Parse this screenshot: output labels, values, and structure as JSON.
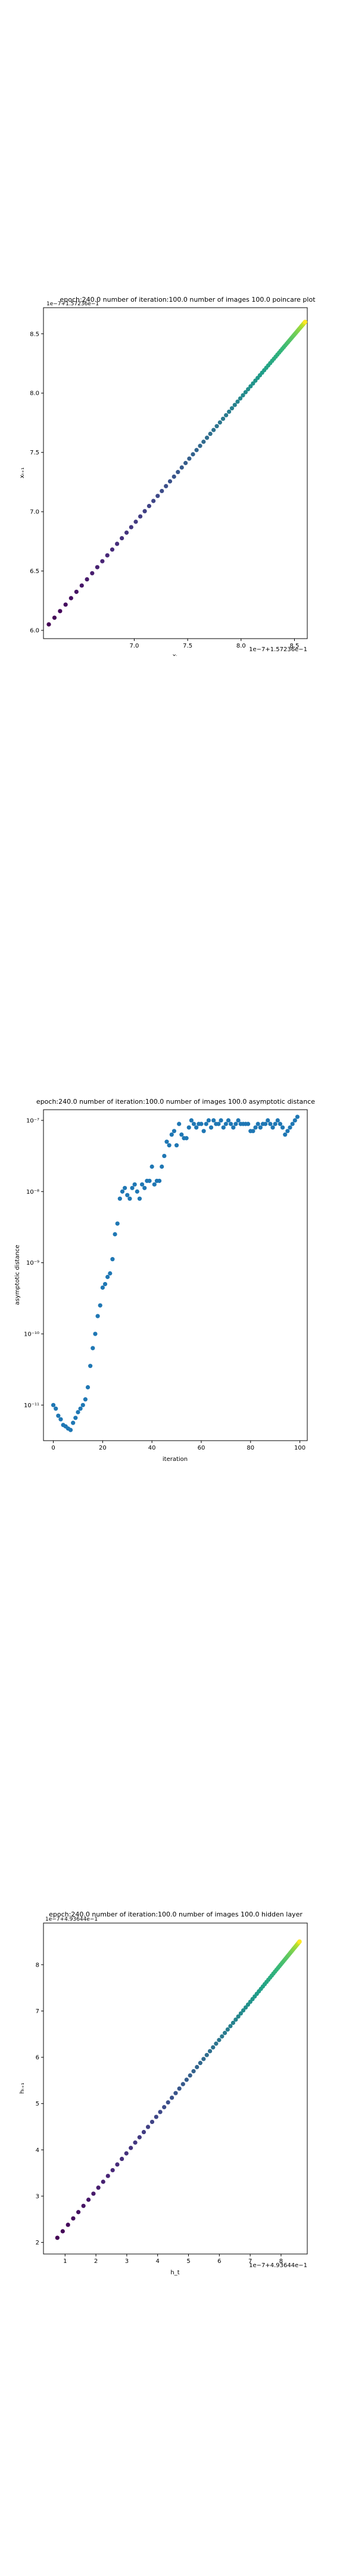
{
  "chart_data": [
    {
      "type": "scatter",
      "title": "epoch:240.0 number of iteration:100.0 number of images 100.0 poincare plot",
      "xlabel": "xₜ",
      "ylabel": "xₜ₊₁",
      "offset_label": "1e−7+1.57236e−1",
      "overlap_text": "1e−7+1.57236e−1",
      "xlim": [
        6.15,
        8.62
      ],
      "ylim": [
        5.93,
        8.72
      ],
      "xticks": [
        7.0,
        7.5,
        8.0,
        8.5
      ],
      "yticks": [
        6.0,
        6.5,
        7.0,
        7.5,
        8.0,
        8.5
      ],
      "colormap": "viridis",
      "marker_color_start": "#440154",
      "marker_color_end": "#fde725",
      "points": {
        "x_start": 6.2,
        "x_end": 8.6,
        "y_start": 6.05,
        "y_end": 8.6,
        "count": 100,
        "spacing": "dense toward upper end"
      }
    },
    {
      "type": "scatter",
      "title": "epoch:240.0 number of iteration:100.0  number of images 100.0 asymptotic distance",
      "xlabel": "iteration",
      "ylabel": "asymptotic distance",
      "yscale": "log",
      "xlim": [
        -4,
        103
      ],
      "ylim_log10": [
        -11.5,
        -6.85
      ],
      "xticks": [
        0,
        20,
        40,
        60,
        80,
        100
      ],
      "yticks_log10": [
        -11,
        -10,
        -9,
        -8,
        -7
      ],
      "ytick_labels": [
        "10⁻¹¹",
        "10⁻¹⁰",
        "10⁻⁹",
        "10⁻⁸",
        "10⁻⁷"
      ],
      "marker_color": "#1f77b4",
      "x": [
        0,
        1,
        2,
        3,
        4,
        5,
        6,
        7,
        8,
        9,
        10,
        11,
        12,
        13,
        14,
        15,
        16,
        17,
        18,
        19,
        20,
        21,
        22,
        23,
        24,
        25,
        26,
        27,
        28,
        29,
        30,
        31,
        32,
        33,
        34,
        35,
        36,
        37,
        38,
        39,
        40,
        41,
        42,
        43,
        44,
        45,
        46,
        47,
        48,
        49,
        50,
        51,
        52,
        53,
        54,
        55,
        56,
        57,
        58,
        59,
        60,
        61,
        62,
        63,
        64,
        65,
        66,
        67,
        68,
        69,
        70,
        71,
        72,
        73,
        74,
        75,
        76,
        77,
        78,
        79,
        80,
        81,
        82,
        83,
        84,
        85,
        86,
        87,
        88,
        89,
        90,
        91,
        92,
        93,
        94,
        95,
        96,
        97,
        98,
        99
      ],
      "log10_y": [
        -11.0,
        -11.05,
        -11.15,
        -11.2,
        -11.28,
        -11.3,
        -11.33,
        -11.35,
        -11.25,
        -11.18,
        -11.1,
        -11.05,
        -11.0,
        -10.92,
        -10.75,
        -10.45,
        -10.2,
        -10.0,
        -9.75,
        -9.6,
        -9.35,
        -9.3,
        -9.2,
        -9.15,
        -8.95,
        -8.6,
        -8.45,
        -8.1,
        -8.0,
        -7.95,
        -8.05,
        -8.1,
        -7.95,
        -7.9,
        -8.0,
        -8.1,
        -7.9,
        -7.95,
        -7.85,
        -7.85,
        -7.65,
        -7.9,
        -7.85,
        -7.85,
        -7.65,
        -7.5,
        -7.3,
        -7.35,
        -7.2,
        -7.15,
        -7.35,
        -7.05,
        -7.2,
        -7.25,
        -7.25,
        -7.1,
        -7.0,
        -7.05,
        -7.1,
        -7.05,
        -7.05,
        -7.15,
        -7.05,
        -7.0,
        -7.1,
        -7.0,
        -7.05,
        -7.05,
        -7.0,
        -7.1,
        -7.05,
        -7.0,
        -7.05,
        -7.1,
        -7.05,
        -7.0,
        -7.05,
        -7.05,
        -7.05,
        -7.05,
        -7.15,
        -7.15,
        -7.1,
        -7.05,
        -7.1,
        -7.05,
        -7.05,
        -7.0,
        -7.05,
        -7.1,
        -7.05,
        -7.0,
        -7.05,
        -7.1,
        -7.2,
        -7.15,
        -7.1,
        -7.05,
        -7.0,
        -6.95
      ]
    },
    {
      "type": "scatter",
      "title": "epoch:240.0 number of iteration:100.0  number of images 100.0 hidden layer",
      "xlabel": "h_t",
      "ylabel": "hₜ₊₁",
      "offset_label": "1e−7+4.93644e−1",
      "overlap_text": "1e−7+4.93644e−1",
      "xlim": [
        0.3,
        8.85
      ],
      "ylim": [
        1.75,
        8.9
      ],
      "xticks": [
        1,
        2,
        3,
        4,
        5,
        6,
        7,
        8
      ],
      "yticks": [
        2,
        3,
        4,
        5,
        6,
        7,
        8
      ],
      "colormap": "viridis",
      "marker_color_start": "#440154",
      "marker_color_end": "#fde725",
      "points": {
        "x_start": 0.75,
        "x_end": 8.6,
        "y_start": 2.1,
        "y_end": 8.5,
        "count": 100,
        "spacing": "dense toward upper end"
      }
    }
  ]
}
